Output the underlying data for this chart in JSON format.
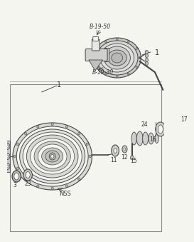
{
  "bg_color": "#f5f5f0",
  "line_color": "#333333",
  "dark": "#444444",
  "mid": "#777777",
  "light": "#aaaaaa",
  "white": "#ffffff",
  "label_b1950": "B-19-50",
  "label_b1930": "B-19-30",
  "label_1a": "1",
  "label_1b": "1",
  "label_3": "3",
  "label_23": "23",
  "label_11": "11",
  "label_12": "12",
  "label_15": "15",
  "label_24": "24",
  "label_16": "16",
  "label_17": "17",
  "label_nss": "NSS"
}
